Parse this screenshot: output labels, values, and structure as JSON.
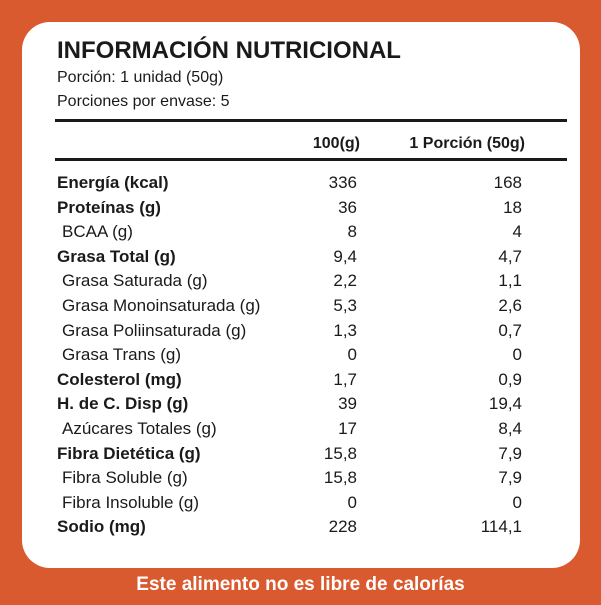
{
  "header": {
    "title": "INFORMACIÓN NUTRICIONAL",
    "serving": "Porción: 1 unidad (50g)",
    "servings_per_package": "Porciones por envase: 5"
  },
  "table": {
    "columns": [
      "100(g)",
      "1 Porción (50g)"
    ],
    "rows": [
      [
        "Energía (kcal)",
        "336",
        "168"
      ],
      [
        "Proteínas (g)",
        "36",
        "18"
      ],
      [
        "BCAA (g)",
        "8",
        "4"
      ],
      [
        "Grasa Total (g)",
        "9,4",
        "4,7"
      ],
      [
        "Grasa Saturada (g)",
        "2,2",
        "1,1"
      ],
      [
        "Grasa Monoinsaturada (g)",
        "5,3",
        "2,6"
      ],
      [
        "Grasa Poliinsaturada (g)",
        "1,3",
        "0,7"
      ],
      [
        "Grasa Trans (g)",
        "0",
        "0"
      ],
      [
        "Colesterol (mg)",
        "1,7",
        "0,9"
      ],
      [
        "H. de C. Disp (g)",
        "39",
        "19,4"
      ],
      [
        "Azúcares Totales (g)",
        "17",
        "8,4"
      ],
      [
        "Fibra Dietética (g)",
        "15,8",
        "7,9"
      ],
      [
        "Fibra Soluble (g)",
        "15,8",
        "7,9"
      ],
      [
        "Fibra Insoluble (g)",
        "0",
        "0"
      ],
      [
        "Sodio (mg)",
        "228",
        "114,1"
      ]
    ]
  },
  "footer": {
    "text": "Este alimento no es libre de calorías"
  }
}
